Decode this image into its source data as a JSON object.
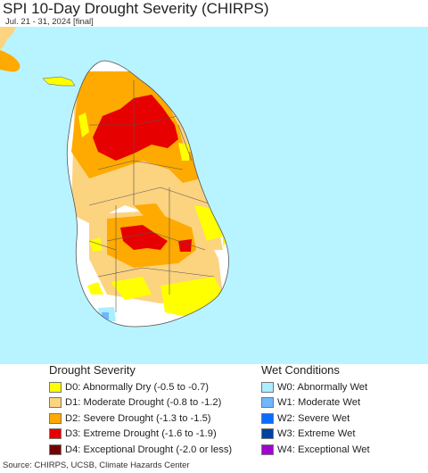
{
  "title": "SPI 10-Day Drought Severity (CHIRPS)",
  "subtitle": "Jul. 21 - 31, 2024 [final]",
  "legend": {
    "drought_heading": "Drought Severity",
    "drought": [
      {
        "label": "D0: Abnormally Dry (-0.5 to -0.7)",
        "color": "#ffff00"
      },
      {
        "label": "D1: Moderate Drought (-0.8 to -1.2)",
        "color": "#fcd37f"
      },
      {
        "label": "D2: Severe Drought (-1.3 to -1.5)",
        "color": "#ffaa00"
      },
      {
        "label": "D3: Extreme Drought (-1.6 to -1.9)",
        "color": "#e60000"
      },
      {
        "label": "D4: Exceptional Drought (-2.0 or less)",
        "color": "#730000"
      }
    ],
    "wet_heading": "Wet Conditions",
    "wet": [
      {
        "label": "W0: Abnormally Wet",
        "color": "#aaeeff"
      },
      {
        "label": "W1: Moderate Wet",
        "color": "#6fb7ff"
      },
      {
        "label": "W2: Severe Wet",
        "color": "#0a6cff"
      },
      {
        "label": "W3: Extreme Wet",
        "color": "#0040a0"
      },
      {
        "label": "W4: Exceptional Wet",
        "color": "#a000d0"
      }
    ]
  },
  "source": "Source: CHIRPS, UCSB, Climate Hazards Center",
  "colors": {
    "sea": "#b8f4ff",
    "land_no_drought": "#ffffff",
    "border": "#555555"
  }
}
